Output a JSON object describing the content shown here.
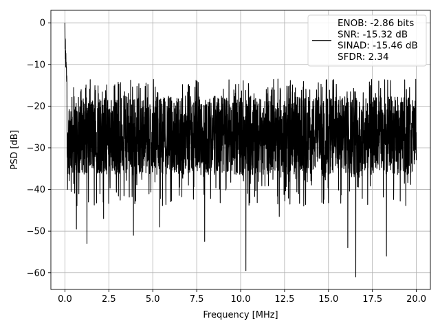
{
  "chart_data": {
    "type": "line",
    "title": "",
    "xlabel": "Frequency [MHz]",
    "ylabel": "PSD [dB]",
    "xlim": [
      -0.8,
      20.8
    ],
    "ylim": [
      -64,
      3
    ],
    "x_ticks": [
      0.0,
      2.5,
      5.0,
      7.5,
      10.0,
      12.5,
      15.0,
      17.5,
      20.0
    ],
    "x_tick_labels": [
      "0.0",
      "2.5",
      "5.0",
      "7.5",
      "10.0",
      "12.5",
      "15.0",
      "17.5",
      "20.0"
    ],
    "y_ticks": [
      0,
      -10,
      -20,
      -30,
      -40,
      -50,
      -60
    ],
    "y_tick_labels": [
      "0",
      "−10",
      "−20",
      "−30",
      "−40",
      "−50",
      "−60"
    ],
    "grid": true,
    "legend_placement": "upper-right",
    "series": [
      {
        "color": "#000000",
        "x_range": [
          0,
          20
        ],
        "peak": {
          "x": 0.0,
          "y": 0
        },
        "noise_floor_median": -27,
        "noise_band": [
          -35,
          -17
        ],
        "notable_minima": [
          {
            "x": 0.65,
            "y": -49.5
          },
          {
            "x": 1.25,
            "y": -53
          },
          {
            "x": 2.2,
            "y": -47
          },
          {
            "x": 3.9,
            "y": -51
          },
          {
            "x": 5.4,
            "y": -49
          },
          {
            "x": 7.95,
            "y": -52.5
          },
          {
            "x": 10.3,
            "y": -59.5
          },
          {
            "x": 12.2,
            "y": -46.5
          },
          {
            "x": 16.1,
            "y": -54
          },
          {
            "x": 16.55,
            "y": -61
          },
          {
            "x": 18.3,
            "y": -56
          }
        ]
      }
    ],
    "legend": {
      "lines": [
        "ENOB: -2.86 bits",
        "SNR: -15.32 dB",
        "SINAD: -15.46 dB",
        "SFDR: 2.34"
      ]
    }
  }
}
